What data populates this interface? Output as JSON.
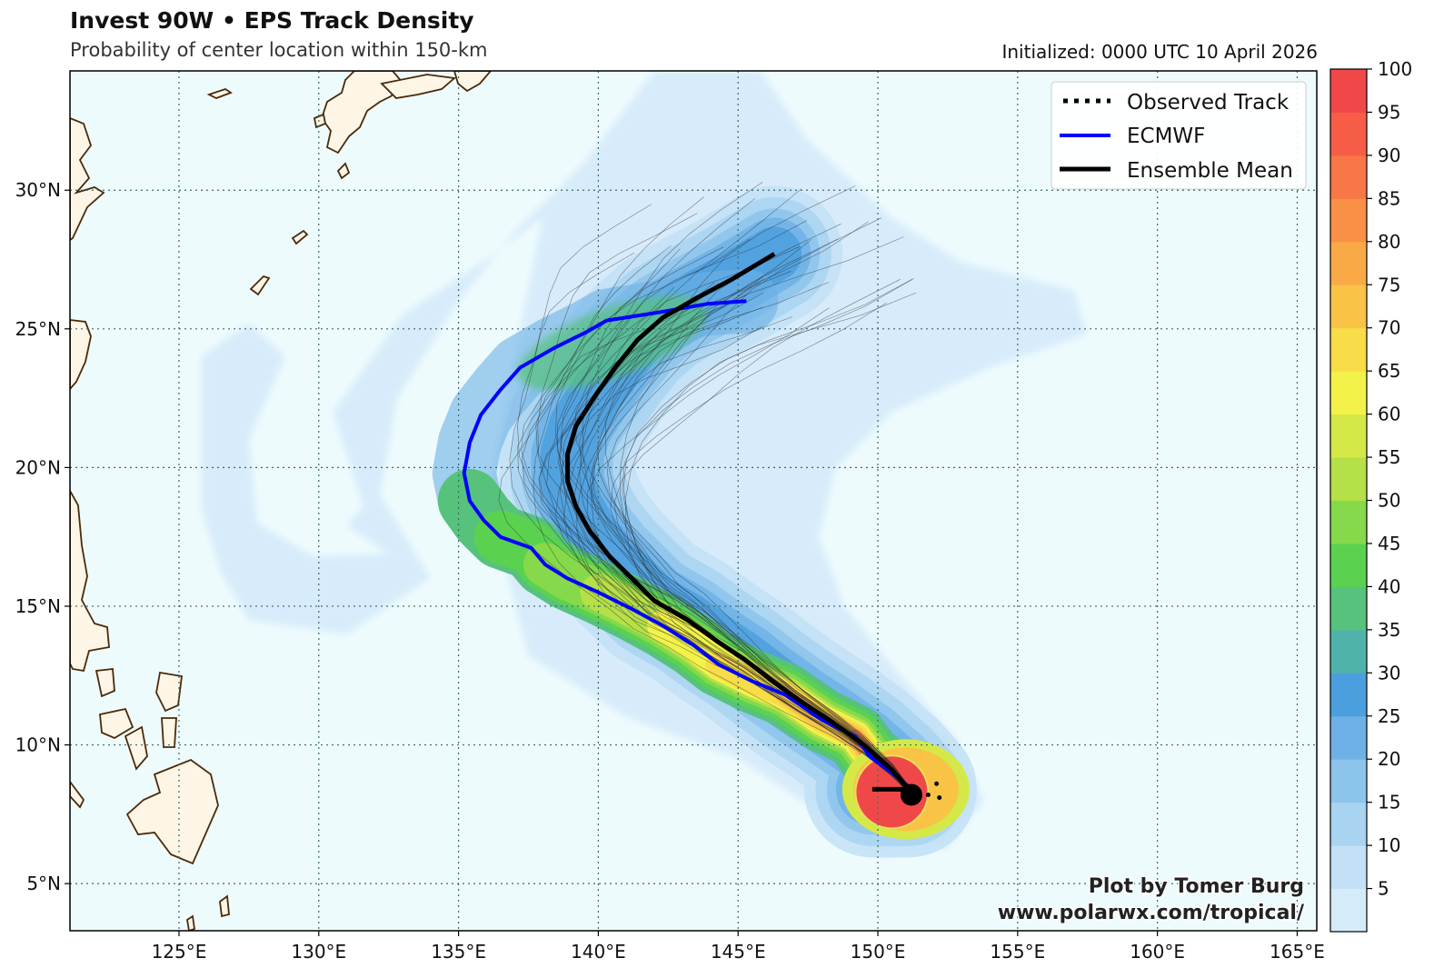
{
  "header": {
    "title": "Invest 90W • EPS Track Density",
    "subtitle": "Probability of center location within 150-km",
    "initialized": "Initialized: 0000 UTC 10 April 2026"
  },
  "legend": {
    "placement": "top-right",
    "items": [
      {
        "label": "Observed Track",
        "color": "#000000",
        "style": "dotted"
      },
      {
        "label": "ECMWF",
        "color": "#0000ff",
        "style": "solid"
      },
      {
        "label": "Ensemble Mean",
        "color": "#000000",
        "style": "solid"
      }
    ]
  },
  "credit": {
    "line1": "Plot by Tomer Burg",
    "line2": "www.polarwx.com/tropical/"
  },
  "map": {
    "lon_range": [
      121.1,
      165.7
    ],
    "lat_range": [
      3.3,
      34.3
    ],
    "lon_ticks": [
      125,
      130,
      135,
      140,
      145,
      150,
      155,
      160,
      165
    ],
    "lon_tick_labels": [
      "125°E",
      "130°E",
      "135°E",
      "140°E",
      "145°E",
      "150°E",
      "155°E",
      "160°E",
      "165°E"
    ],
    "lat_ticks": [
      5,
      10,
      15,
      20,
      25,
      30
    ],
    "lat_tick_labels": [
      "5°N",
      "10°N",
      "15°N",
      "20°N",
      "25°N",
      "30°N"
    ],
    "grid": "dotted",
    "ocean_color": "#eefbfd",
    "land_color": "#fdf5e6",
    "coast_color": "#4a2a0a"
  },
  "colorbar": {
    "ticks": [
      5,
      10,
      15,
      20,
      25,
      30,
      35,
      40,
      45,
      50,
      55,
      60,
      65,
      70,
      75,
      80,
      85,
      90,
      95,
      100
    ],
    "tick_labels": [
      "5",
      "10",
      "15",
      "20",
      "25",
      "30",
      "35",
      "40",
      "45",
      "50",
      "55",
      "60",
      "65",
      "70",
      "75",
      "80",
      "85",
      "90",
      "95",
      "100"
    ],
    "min": 0,
    "max": 100,
    "colors": [
      "#d6ebfa",
      "#c3e0f6",
      "#a8d3f1",
      "#8dc4ec",
      "#6db1e6",
      "#4c9fde",
      "#4fb3ac",
      "#56c27c",
      "#5bd24f",
      "#86d94a",
      "#b6e048",
      "#d4e948",
      "#f2f24a",
      "#f8dc48",
      "#f9c446",
      "#f9aa46",
      "#f99046",
      "#f97646",
      "#f75d46",
      "#f04848"
    ]
  },
  "tracks": {
    "ecmwf": [
      [
        151.1,
        8.5
      ],
      [
        150.5,
        9.0
      ],
      [
        149.7,
        9.6
      ],
      [
        149.2,
        10.3
      ],
      [
        148.0,
        10.9
      ],
      [
        146.7,
        11.8
      ],
      [
        145.5,
        12.3
      ],
      [
        144.3,
        12.9
      ],
      [
        143.4,
        13.6
      ],
      [
        142.3,
        14.3
      ],
      [
        141.2,
        14.9
      ],
      [
        140.0,
        15.5
      ],
      [
        138.9,
        16.0
      ],
      [
        138.1,
        16.5
      ],
      [
        137.6,
        17.1
      ],
      [
        136.5,
        17.5
      ],
      [
        135.9,
        18.1
      ],
      [
        135.4,
        18.8
      ],
      [
        135.2,
        19.8
      ],
      [
        135.4,
        20.9
      ],
      [
        135.8,
        21.9
      ],
      [
        136.5,
        22.8
      ],
      [
        137.2,
        23.6
      ],
      [
        138.4,
        24.3
      ],
      [
        139.6,
        24.9
      ],
      [
        140.3,
        25.3
      ],
      [
        142.2,
        25.6
      ],
      [
        143.9,
        25.9
      ],
      [
        145.3,
        26.0
      ]
    ],
    "ensemble_mean": [
      [
        149.8,
        8.4
      ],
      [
        151.1,
        8.4
      ],
      [
        150.5,
        9.1
      ],
      [
        149.5,
        10.0
      ],
      [
        148.4,
        10.8
      ],
      [
        147.2,
        11.6
      ],
      [
        146.1,
        12.4
      ],
      [
        145.2,
        13.1
      ],
      [
        144.3,
        13.7
      ],
      [
        143.2,
        14.5
      ],
      [
        142.0,
        15.2
      ],
      [
        141.2,
        16.0
      ],
      [
        140.4,
        16.8
      ],
      [
        139.7,
        17.7
      ],
      [
        139.2,
        18.6
      ],
      [
        138.9,
        19.5
      ],
      [
        138.9,
        20.5
      ],
      [
        139.2,
        21.5
      ],
      [
        139.9,
        22.6
      ],
      [
        140.6,
        23.6
      ],
      [
        141.4,
        24.6
      ],
      [
        142.3,
        25.4
      ],
      [
        143.5,
        26.1
      ],
      [
        144.8,
        26.8
      ],
      [
        146.3,
        27.7
      ]
    ]
  }
}
